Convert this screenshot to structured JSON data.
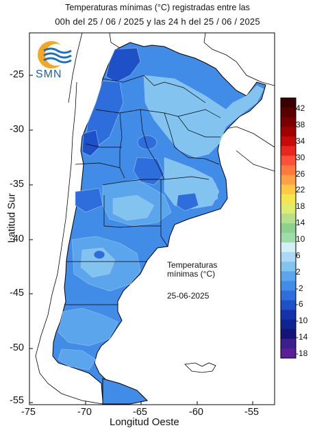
{
  "title_line1": "Temperaturas mínimas (°C) registradas entre las",
  "title_line2": "00h del 25 / 06 / 2025 y las 24 h del 25 / 06 / 2025",
  "logo_text": "SMN",
  "annotation": {
    "line1": "Temperaturas",
    "line2": "mínimas (°C)",
    "date": "25-06-2025"
  },
  "axes": {
    "xlabel": "Longitud Oeste",
    "ylabel": "Latitud Sur",
    "x_ticks": [
      "-75",
      "-70",
      "-65",
      "-60",
      "-55"
    ],
    "y_ticks": [
      "-25",
      "-30",
      "-35",
      "-40",
      "-45",
      "-50",
      "-55"
    ]
  },
  "legend": {
    "labels": [
      "42",
      "38",
      "34",
      "30",
      "26",
      "22",
      "18",
      "14",
      "10",
      "6",
      "2",
      "-2",
      "-6",
      "-10",
      "-14",
      "-18"
    ],
    "colors": [
      "#3b0000",
      "#5a0000",
      "#7a0000",
      "#a00000",
      "#c80a0a",
      "#e8281e",
      "#ff503c",
      "#ff7a3c",
      "#ffa046",
      "#ffc846",
      "#f5e650",
      "#e0ec6e",
      "#b8e08c",
      "#8cd28c",
      "#a0dcaa",
      "#d2f0f5",
      "#aad8f5",
      "#82c3f0",
      "#5aa5eb",
      "#418ce6",
      "#2d6edc",
      "#1e50c8",
      "#1432aa",
      "#0f2391",
      "#141478",
      "#3c1e8c",
      "#5a1e96"
    ]
  }
}
